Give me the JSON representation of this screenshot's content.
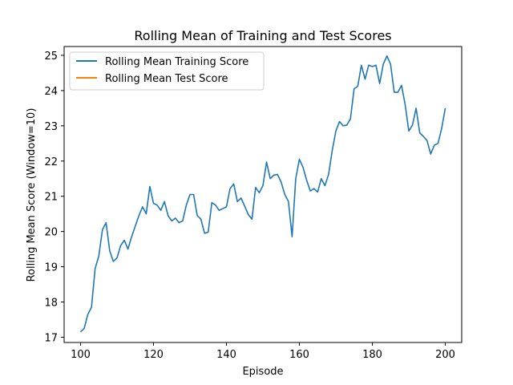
{
  "chart_data": {
    "type": "line",
    "title": "Rolling Mean of Training and Test Scores",
    "xlabel": "Episode",
    "ylabel": "Rolling Mean Score (Window=10)",
    "xlim": [
      95.5,
      204.5
    ],
    "ylim": [
      16.85,
      25.25
    ],
    "xticks": [
      100,
      120,
      140,
      160,
      180,
      200
    ],
    "yticks": [
      17,
      18,
      19,
      20,
      21,
      22,
      23,
      24,
      25
    ],
    "grid": false,
    "legend_position": "top-left",
    "series": [
      {
        "name": "Rolling Mean Training Score",
        "color": "#1f77b4",
        "x": [
          100,
          101,
          102,
          103,
          104,
          105,
          106,
          107,
          108,
          109,
          110,
          111,
          112,
          113,
          114,
          115,
          116,
          117,
          118,
          119,
          120,
          121,
          122,
          123,
          124,
          125,
          126,
          127,
          128,
          129,
          130,
          131,
          132,
          133,
          134,
          135,
          136,
          137,
          138,
          139,
          140,
          141,
          142,
          143,
          144,
          145,
          146,
          147,
          148,
          149,
          150,
          151,
          152,
          153,
          154,
          155,
          156,
          157,
          158,
          159,
          160,
          161,
          162,
          163,
          164,
          165,
          166,
          167,
          168,
          169,
          170,
          171,
          172,
          173,
          174,
          175,
          176,
          177,
          178,
          179,
          180,
          181,
          182,
          183,
          184,
          185,
          186,
          187,
          188,
          189,
          190,
          191,
          192,
          193,
          194,
          195,
          196,
          197,
          198,
          199,
          200
        ],
        "values": [
          17.15,
          17.25,
          17.65,
          17.85,
          18.95,
          19.3,
          20.05,
          20.25,
          19.45,
          19.15,
          19.25,
          19.6,
          19.75,
          19.5,
          19.85,
          20.15,
          20.45,
          20.7,
          20.5,
          21.28,
          20.8,
          20.75,
          20.6,
          20.85,
          20.45,
          20.3,
          20.38,
          20.25,
          20.3,
          20.75,
          21.05,
          21.05,
          20.45,
          20.35,
          19.95,
          19.98,
          20.82,
          20.75,
          20.6,
          20.65,
          20.7,
          21.22,
          21.35,
          20.85,
          20.95,
          20.72,
          20.48,
          20.35,
          21.25,
          21.1,
          21.3,
          21.97,
          21.5,
          21.6,
          21.62,
          21.4,
          21.05,
          20.85,
          19.85,
          21.5,
          22.05,
          21.82,
          21.45,
          21.15,
          21.22,
          21.12,
          21.5,
          21.3,
          21.62,
          22.3,
          22.85,
          23.12,
          23.0,
          23.02,
          23.2,
          24.05,
          24.12,
          24.72,
          24.32,
          24.72,
          24.68,
          24.72,
          24.2,
          24.75,
          24.98,
          24.75,
          23.95,
          23.95,
          24.15,
          23.6,
          22.85,
          23.02,
          23.5,
          22.8,
          22.7,
          22.58,
          22.2,
          22.45,
          22.5,
          22.92,
          23.5
        ]
      },
      {
        "name": "Rolling Mean Test Score",
        "color": "#ff7f0e",
        "x": [],
        "values": []
      }
    ]
  }
}
